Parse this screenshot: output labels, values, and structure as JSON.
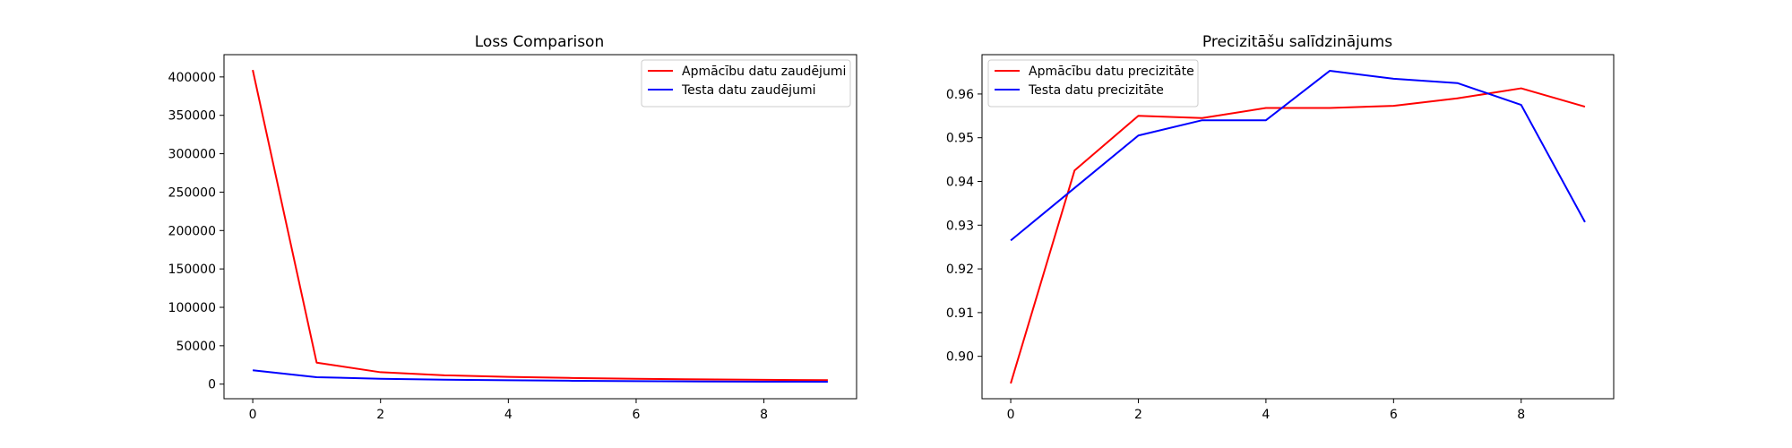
{
  "chart_data": [
    {
      "type": "line",
      "title": "Loss Comparison",
      "xlabel": "",
      "ylabel": "",
      "xlim": [
        -0.45,
        9.45
      ],
      "ylim": [
        -19000,
        429000
      ],
      "xticks": [
        0,
        2,
        4,
        6,
        8
      ],
      "yticks": [
        0,
        50000,
        100000,
        150000,
        200000,
        250000,
        300000,
        350000,
        400000
      ],
      "grid": false,
      "legend_position": "upper right",
      "x": [
        0,
        1,
        2,
        3,
        4,
        5,
        6,
        7,
        8,
        9
      ],
      "series": [
        {
          "name": "Apmācību datu zaudējumi",
          "color": "#ff0000",
          "values": [
            409000,
            28000,
            15500,
            11500,
            9500,
            8000,
            7000,
            6200,
            5600,
            5200
          ]
        },
        {
          "name": "Testa datu zaudējumi",
          "color": "#0000ff",
          "values": [
            18000,
            9000,
            7000,
            5800,
            5000,
            4400,
            3900,
            3500,
            3200,
            3000
          ]
        }
      ]
    },
    {
      "type": "line",
      "title": "Precizitāšu salīdzinājums",
      "xlabel": "",
      "ylabel": "",
      "xlim": [
        -0.45,
        9.45
      ],
      "ylim": [
        0.8903,
        0.969
      ],
      "xticks": [
        0,
        2,
        4,
        6,
        8
      ],
      "yticks": [
        0.9,
        0.91,
        0.92,
        0.93,
        0.94,
        0.95,
        0.96
      ],
      "ytick_labels": [
        "0.90",
        "0.91",
        "0.92",
        "0.93",
        "0.94",
        "0.95",
        "0.96"
      ],
      "grid": false,
      "legend_position": "upper left",
      "x": [
        0,
        1,
        2,
        3,
        4,
        5,
        6,
        7,
        8,
        9
      ],
      "series": [
        {
          "name": "Apmācību datu precizitāte",
          "color": "#ff0000",
          "values": [
            0.8938,
            0.9425,
            0.955,
            0.9545,
            0.9568,
            0.9568,
            0.9573,
            0.959,
            0.9613,
            0.9571
          ]
        },
        {
          "name": "Testa datu precizitāte",
          "color": "#0000ff",
          "values": [
            0.9265,
            0.9385,
            0.9505,
            0.954,
            0.954,
            0.9653,
            0.9635,
            0.9625,
            0.9575,
            0.9307
          ]
        }
      ]
    }
  ]
}
